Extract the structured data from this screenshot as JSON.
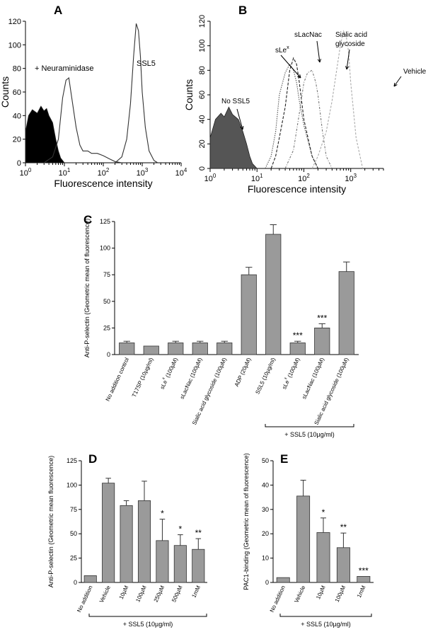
{
  "chart_data": [
    {
      "panel": "A",
      "type": "line",
      "title": "",
      "xlabel": "Fluorescence intensity",
      "ylabel": "Counts",
      "xscale": "log",
      "xlim": [
        1,
        10000
      ],
      "ylim": [
        0,
        120
      ],
      "x_ticks": [
        "10^0",
        "10^1",
        "10^2",
        "10^3",
        "10^4"
      ],
      "y_ticks": [
        0,
        20,
        40,
        60,
        80,
        100,
        120
      ],
      "annotations": [
        "+ Neuraminidase",
        "SSL5"
      ],
      "series": [
        {
          "name": "No SSL5 (filled)",
          "style": "filled-black",
          "x": [
            1,
            1.2,
            1.5,
            2,
            2.5,
            3,
            3.5,
            4,
            5,
            6,
            7,
            8,
            10
          ],
          "y": [
            26,
            40,
            45,
            42,
            48,
            44,
            46,
            40,
            34,
            20,
            10,
            4,
            0
          ]
        },
        {
          "name": "+ Neuraminidase",
          "style": "line",
          "x": [
            3,
            5,
            7,
            9,
            11,
            13,
            15,
            20,
            25,
            30,
            40,
            50,
            70,
            100,
            150,
            200,
            300
          ],
          "y": [
            0,
            5,
            20,
            55,
            70,
            72,
            58,
            30,
            15,
            10,
            10,
            8,
            8,
            6,
            3,
            1,
            0
          ]
        },
        {
          "name": "SSL5",
          "style": "line",
          "x": [
            200,
            300,
            400,
            500,
            600,
            700,
            800,
            900,
            1000,
            1200,
            1500,
            2000,
            2500
          ],
          "y": [
            0,
            5,
            20,
            50,
            90,
            118,
            112,
            90,
            60,
            30,
            10,
            2,
            0
          ]
        }
      ]
    },
    {
      "panel": "B",
      "type": "line",
      "title": "",
      "xlabel": "Fluorescence intensity",
      "ylabel": "Counts",
      "xscale": "log",
      "xlim": [
        1,
        5000
      ],
      "ylim": [
        0,
        120
      ],
      "x_ticks": [
        "10^0",
        "10^1",
        "10^2",
        "10^3"
      ],
      "y_ticks": [
        0,
        20,
        40,
        60,
        80,
        100,
        120
      ],
      "annotations": [
        "No SSL5",
        "sLe^x",
        "sLacNac",
        "Sialic acid",
        "glycoside",
        "Vehicle"
      ],
      "series": [
        {
          "name": "No SSL5",
          "style": "filled-gray",
          "x": [
            1,
            1.3,
            1.7,
            2,
            2.5,
            3,
            4,
            5,
            6,
            7,
            8,
            10
          ],
          "y": [
            25,
            40,
            45,
            42,
            50,
            44,
            40,
            30,
            20,
            10,
            4,
            0
          ]
        },
        {
          "name": "sLe^x",
          "style": "dotted",
          "x": [
            15,
            20,
            25,
            30,
            40,
            50,
            60,
            70,
            80,
            100,
            150,
            200
          ],
          "y": [
            0,
            10,
            30,
            60,
            78,
            85,
            80,
            70,
            55,
            35,
            10,
            0
          ]
        },
        {
          "name": "sLacNac",
          "style": "dashed",
          "x": [
            20,
            25,
            30,
            40,
            50,
            60,
            70,
            80,
            100,
            150,
            200
          ],
          "y": [
            0,
            10,
            25,
            50,
            80,
            90,
            85,
            70,
            40,
            10,
            0
          ]
        },
        {
          "name": "Sialic acid glycoside",
          "style": "dash-dot",
          "x": [
            40,
            60,
            80,
            100,
            120,
            150,
            180,
            200,
            250,
            300,
            400
          ],
          "y": [
            0,
            15,
            45,
            70,
            78,
            80,
            70,
            60,
            30,
            10,
            0
          ]
        },
        {
          "name": "Vehicle",
          "style": "light-dashed",
          "x": [
            150,
            200,
            300,
            400,
            500,
            600,
            700,
            800,
            900,
            1000,
            1300,
            1800
          ],
          "y": [
            0,
            10,
            30,
            55,
            80,
            100,
            112,
            108,
            95,
            70,
            25,
            0
          ]
        }
      ]
    },
    {
      "panel": "C",
      "type": "bar",
      "ylabel": "Anti-P-selectin (Geometric mean of fluorescence)",
      "ylim": [
        0,
        125
      ],
      "y_ticks": [
        0,
        25,
        50,
        75,
        100,
        125
      ],
      "categories": [
        "No addition control",
        "T17SP (10µg/ml)",
        "sLe^x (100µM)",
        "sLacNac (100µM)",
        "Sialic acid glycoside (100µM)",
        "ADP (20µM)",
        "SSL5 (10µg/ml)",
        "sLe^x (100µM)",
        "sLacNac (100µM)",
        "Sialic acid glycoside (100µM)"
      ],
      "values": [
        11,
        8,
        11,
        11,
        11,
        75,
        113,
        11,
        25,
        78
      ],
      "errors": [
        1.5,
        0,
        1.5,
        1.5,
        1.5,
        7,
        9,
        1.5,
        4,
        9
      ],
      "significance": [
        "",
        "",
        "",
        "",
        "",
        "",
        "",
        "***",
        "***",
        ""
      ],
      "group_label": "+ SSL5 (10µg/ml)"
    },
    {
      "panel": "D",
      "type": "bar",
      "ylabel": "Anti-P-selectin (Geometric mean fluorescence)",
      "ylim": [
        0,
        125
      ],
      "y_ticks": [
        0,
        25,
        50,
        75,
        100,
        125
      ],
      "categories": [
        "No addition",
        "Vehicle",
        "10µM",
        "100µM",
        "250µM",
        "500µM",
        "1mM"
      ],
      "values": [
        7,
        102,
        79,
        84,
        43,
        38,
        34
      ],
      "errors": [
        0,
        5,
        5,
        20,
        22,
        11,
        11
      ],
      "significance": [
        "",
        "",
        "",
        "",
        "*",
        "*",
        "**"
      ],
      "group_label": "+ SSL5 (10µg/ml)"
    },
    {
      "panel": "E",
      "type": "bar",
      "ylabel": "PAC1-binding (Geometric mean of fluorescence)",
      "ylim": [
        0,
        50
      ],
      "y_ticks": [
        0,
        10,
        20,
        30,
        40,
        50
      ],
      "categories": [
        "No addition",
        "Vehicle",
        "10µM",
        "100µM",
        "1mM"
      ],
      "values": [
        2,
        35.5,
        20.5,
        14.3,
        2.5
      ],
      "errors": [
        0,
        6.5,
        6,
        6,
        0
      ],
      "significance": [
        "",
        "",
        "*",
        "**",
        "***"
      ],
      "group_label": "+ SSL5 (10µg/ml)"
    }
  ]
}
